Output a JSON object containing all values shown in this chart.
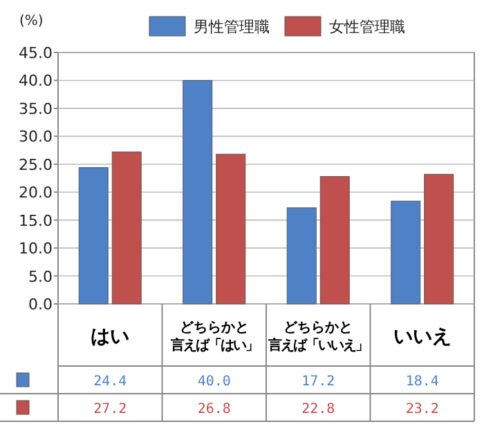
{
  "chart_data": {
    "type": "bar",
    "ylabel": "(%)",
    "categories": [
      "はい",
      "どちらかと言えば「はい」",
      "どちらかと言えば「いいえ」",
      "いいえ"
    ],
    "series": [
      {
        "name": "男性管理職",
        "color": "#4f81c7",
        "values": [
          24.4,
          40.0,
          17.2,
          18.4
        ],
        "value_labels": [
          "24.4",
          "40.0",
          "17.2",
          "18.4"
        ]
      },
      {
        "name": "女性管理職",
        "color": "#c0504d",
        "values": [
          27.2,
          26.8,
          22.8,
          23.2
        ],
        "value_labels": [
          "27.2",
          "26.8",
          "22.8",
          "23.2"
        ]
      }
    ],
    "ylim": [
      0,
      45
    ],
    "yticks": [
      {
        "value": 0,
        "label": "0.0"
      },
      {
        "value": 5,
        "label": "5.0"
      },
      {
        "value": 10,
        "label": "10.0"
      },
      {
        "value": 15,
        "label": "15.0"
      },
      {
        "value": 20,
        "label": "20.0"
      },
      {
        "value": 25,
        "label": "25.0"
      },
      {
        "value": 30,
        "label": "30.0"
      },
      {
        "value": 35,
        "label": "35.0"
      },
      {
        "value": 40,
        "label": "40.0"
      },
      {
        "value": 45,
        "label": "45.0"
      }
    ],
    "grid": "y",
    "legend": "top"
  }
}
